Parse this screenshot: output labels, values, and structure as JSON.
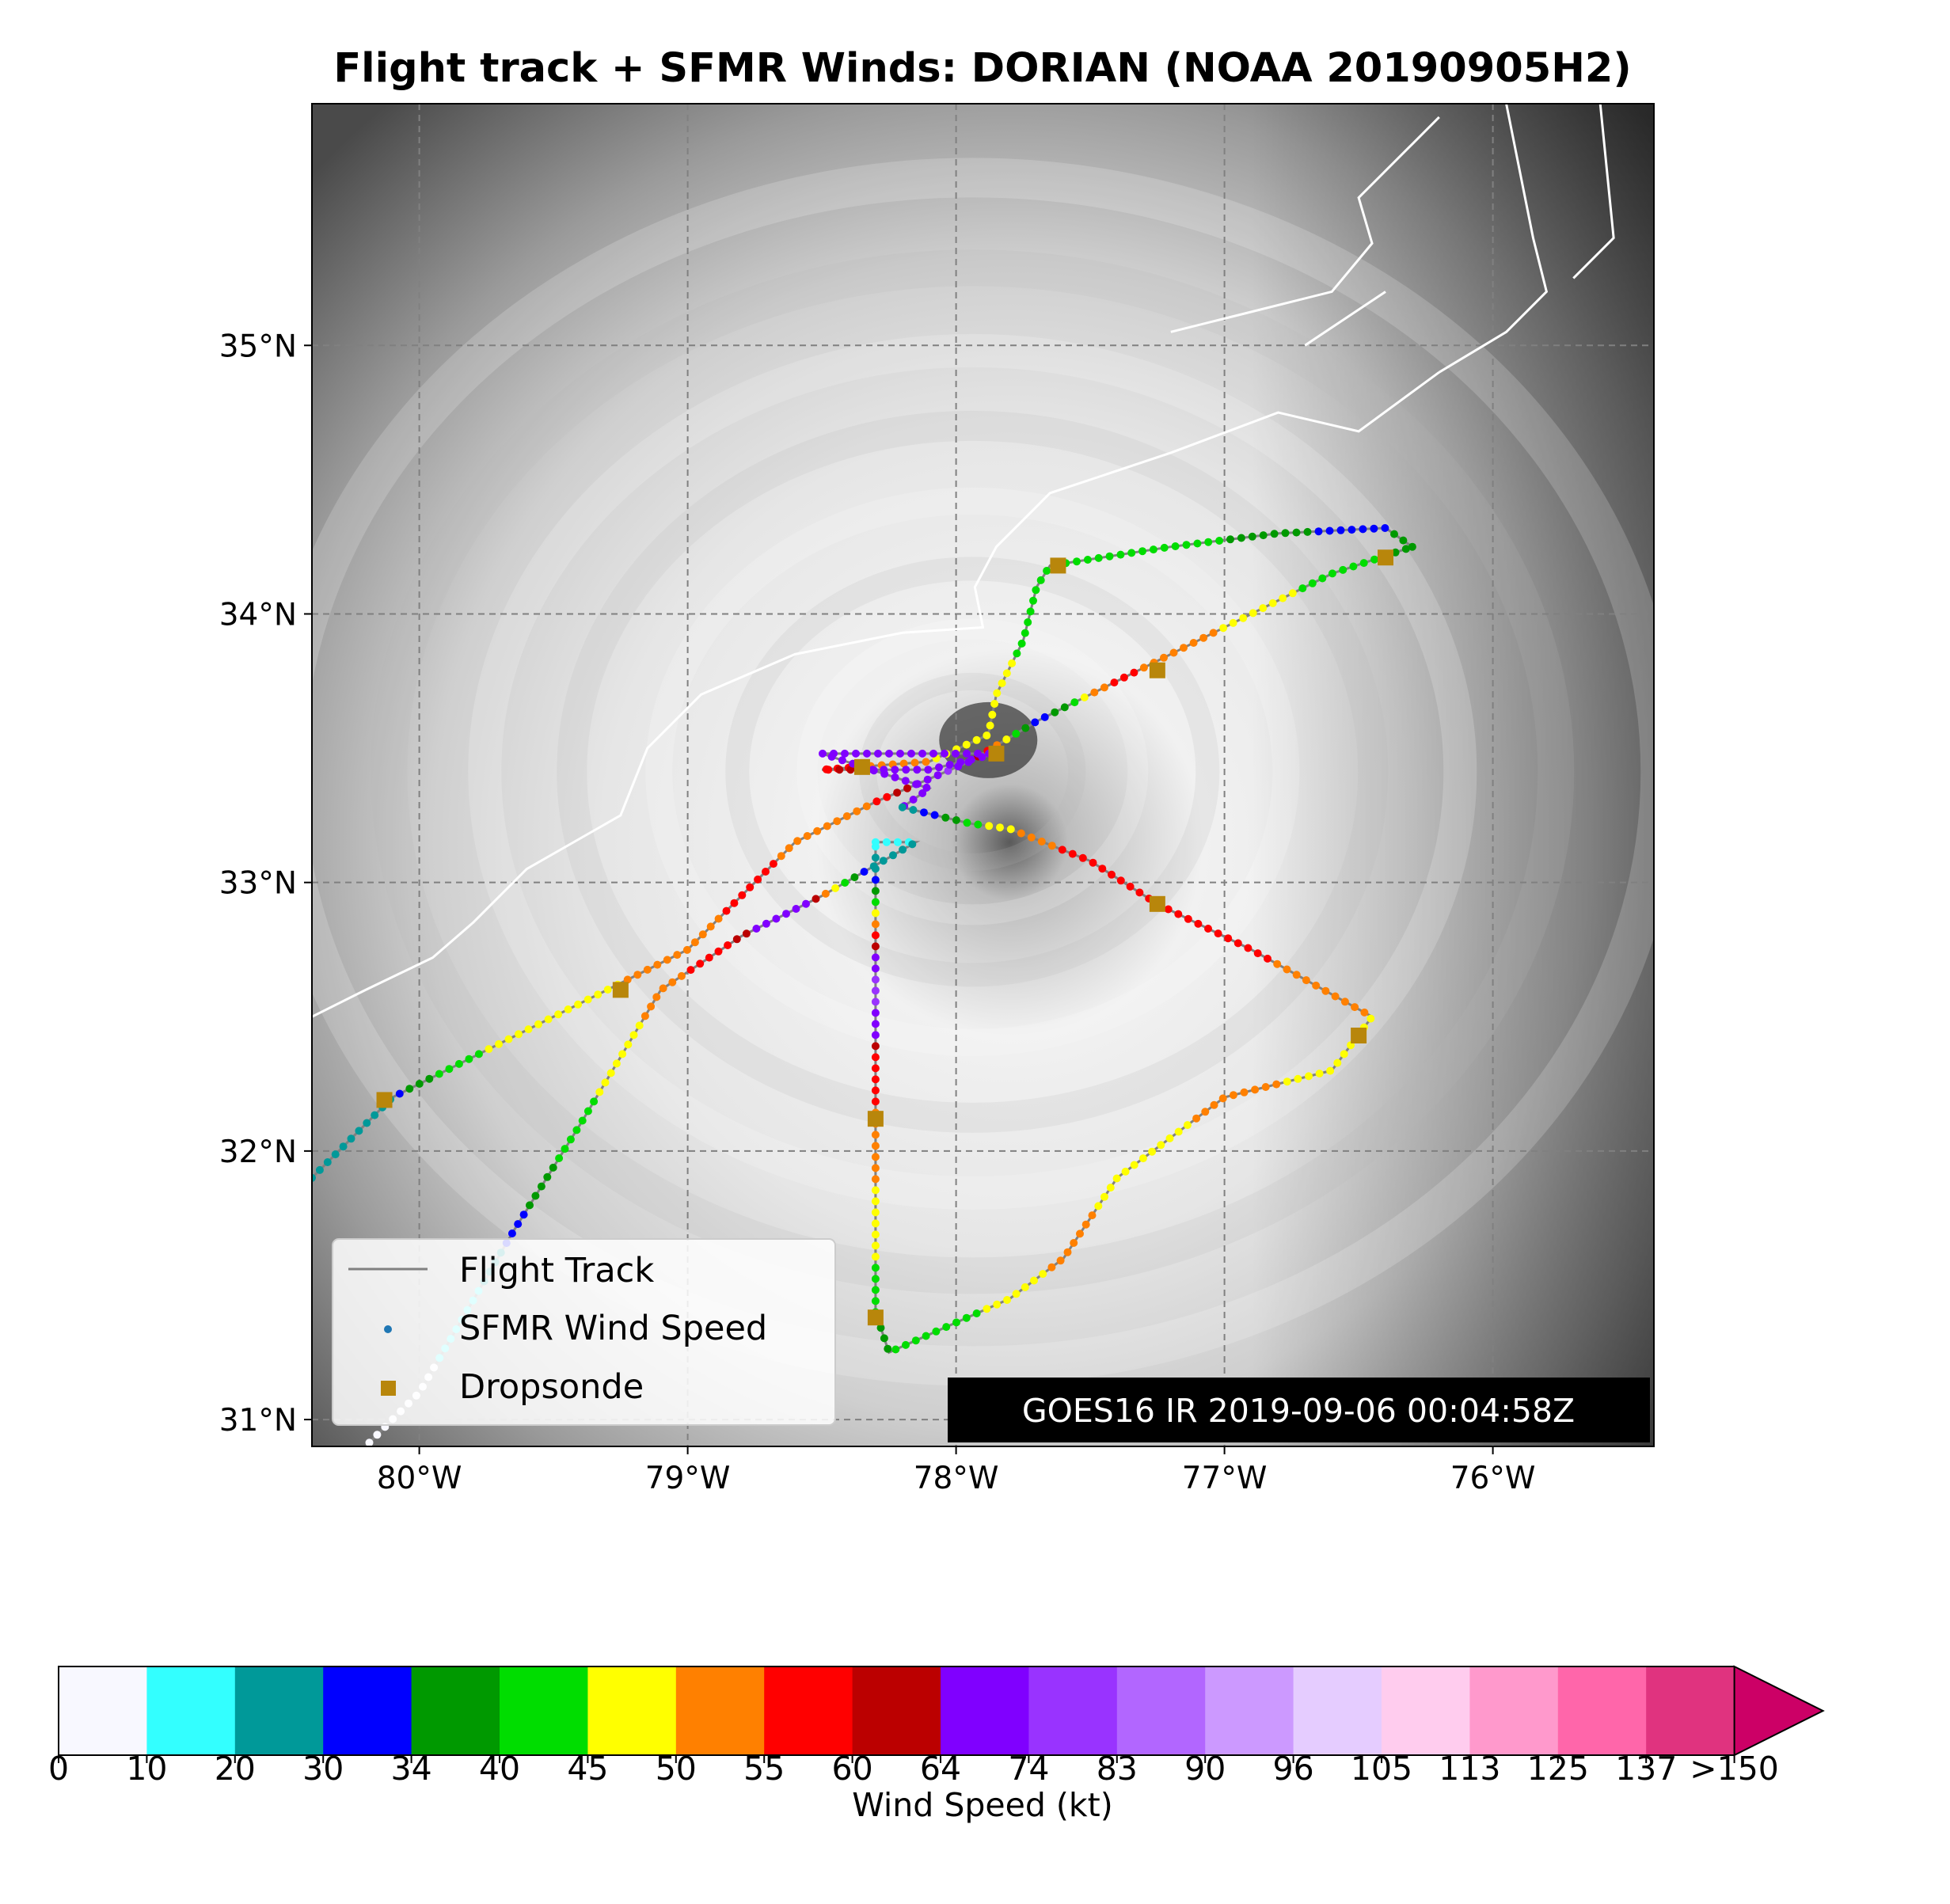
{
  "title": "Flight track + SFMR Winds: DORIAN (NOAA 20190905H2)",
  "goes_label": "GOES16 IR 2019-09-06 00:04:58Z",
  "legend": {
    "flight_track": "Flight Track",
    "sfmr": "SFMR Wind Speed",
    "dropsonde": "Dropsonde"
  },
  "colorbar": {
    "label": "Wind Speed (kt)",
    "ticks": [
      "0",
      "10",
      "20",
      "30",
      "34",
      "40",
      "45",
      "50",
      "55",
      "60",
      "64",
      "74",
      "83",
      "90",
      "96",
      "105",
      "113",
      "125",
      "137",
      ">150"
    ],
    "colors": [
      "#f8f8ff",
      "#33ffff",
      "#009999",
      "#0000ff",
      "#009900",
      "#00dd00",
      "#ffff00",
      "#ff8000",
      "#ff0000",
      "#bb0000",
      "#8000ff",
      "#9933ff",
      "#b266ff",
      "#cc99ff",
      "#e5ccff",
      "#ffccee",
      "#ff99cc",
      "#ff66aa",
      "#e0337f",
      "#cc0066"
    ]
  },
  "colors": {
    "track": "#808080",
    "dropsonde": "#b8860b",
    "coast": "#ffffff"
  },
  "chart_data": {
    "type": "scatter",
    "title": "Flight track + SFMR Winds: DORIAN (NOAA 20190905H2)",
    "xlim": [
      -80.4,
      -75.4
    ],
    "ylim": [
      30.9,
      35.9
    ],
    "xticks": [
      {
        "value": -80,
        "label": "80°W"
      },
      {
        "value": -79,
        "label": "79°W"
      },
      {
        "value": -78,
        "label": "78°W"
      },
      {
        "value": -77,
        "label": "77°W"
      },
      {
        "value": -76,
        "label": "76°W"
      }
    ],
    "yticks": [
      {
        "value": 31,
        "label": "31°N"
      },
      {
        "value": 32,
        "label": "32°N"
      },
      {
        "value": 33,
        "label": "33°N"
      },
      {
        "value": 34,
        "label": "34°N"
      },
      {
        "value": 35,
        "label": "35°N"
      }
    ],
    "grid": true,
    "legend_position": "lower-left",
    "storm_center": [
      -77.88,
      33.53
    ],
    "flight_legs": [
      {
        "pts": [
          [
            -80.4,
            31.9
          ],
          [
            -80.1,
            32.2
          ],
          [
            -79.7,
            32.4
          ],
          [
            -79.3,
            32.6
          ],
          [
            -79.0,
            32.75
          ],
          [
            -78.6,
            33.15
          ],
          [
            -78.3,
            33.3
          ],
          [
            -77.95,
            33.45
          ],
          [
            -77.7,
            33.6
          ],
          [
            -77.3,
            33.8
          ],
          [
            -76.9,
            34.0
          ],
          [
            -76.6,
            34.15
          ],
          [
            -76.3,
            34.25
          ]
        ],
        "w": [
          [
            0,
            22
          ],
          [
            0.08,
            28
          ],
          [
            0.14,
            44
          ],
          [
            0.25,
            48
          ],
          [
            0.33,
            52
          ],
          [
            0.42,
            57
          ],
          [
            0.52,
            50
          ],
          [
            0.6,
            75
          ],
          [
            0.68,
            30
          ],
          [
            0.74,
            57
          ],
          [
            0.8,
            52
          ],
          [
            0.88,
            47
          ],
          [
            0.95,
            42
          ],
          [
            1.0,
            37
          ]
        ]
      },
      {
        "pts": [
          [
            -76.3,
            34.25
          ],
          [
            -76.4,
            34.32
          ],
          [
            -76.8,
            34.3
          ],
          [
            -77.2,
            34.25
          ],
          [
            -77.65,
            34.18
          ],
          [
            -77.7,
            34.1
          ],
          [
            -77.75,
            33.9
          ],
          [
            -77.85,
            33.7
          ],
          [
            -77.88,
            33.55
          ],
          [
            -78.1,
            33.45
          ],
          [
            -78.5,
            33.42
          ],
          [
            -78.1,
            33.42
          ],
          [
            -77.85,
            33.48
          ],
          [
            -78.5,
            33.48
          ],
          [
            -78.1,
            33.35
          ],
          [
            -78.2,
            33.28
          ]
        ],
        "w": [
          [
            0,
            37
          ],
          [
            0.05,
            31
          ],
          [
            0.18,
            42
          ],
          [
            0.35,
            44
          ],
          [
            0.45,
            47
          ],
          [
            0.52,
            51
          ],
          [
            0.58,
            56
          ],
          [
            0.64,
            68
          ],
          [
            0.75,
            70
          ],
          [
            0.85,
            73
          ],
          [
            1.0,
            70
          ]
        ]
      },
      {
        "pts": [
          [
            -78.2,
            33.28
          ],
          [
            -77.95,
            33.22
          ],
          [
            -77.8,
            33.2
          ],
          [
            -77.5,
            33.08
          ],
          [
            -77.25,
            32.92
          ],
          [
            -76.9,
            32.75
          ],
          [
            -76.45,
            32.5
          ],
          [
            -76.6,
            32.3
          ],
          [
            -77.0,
            32.2
          ],
          [
            -77.4,
            31.9
          ],
          [
            -77.6,
            31.6
          ],
          [
            -77.8,
            31.45
          ],
          [
            -78.25,
            31.25
          ],
          [
            -78.3,
            31.4
          ]
        ],
        "w": [
          [
            0,
            25
          ],
          [
            0.08,
            48
          ],
          [
            0.18,
            60
          ],
          [
            0.3,
            58
          ],
          [
            0.38,
            53
          ],
          [
            0.5,
            47
          ],
          [
            0.58,
            52
          ],
          [
            0.7,
            47
          ],
          [
            0.78,
            52
          ],
          [
            0.86,
            46
          ],
          [
            0.94,
            42
          ],
          [
            1.0,
            36
          ]
        ]
      },
      {
        "pts": [
          [
            -78.3,
            31.4
          ],
          [
            -78.3,
            32.1
          ],
          [
            -78.3,
            32.5
          ],
          [
            -78.3,
            32.8
          ],
          [
            -78.3,
            33.0
          ],
          [
            -78.3,
            33.15
          ]
        ],
        "w": [
          [
            0,
            42
          ],
          [
            0.18,
            47
          ],
          [
            0.35,
            52
          ],
          [
            0.55,
            60
          ],
          [
            0.7,
            80
          ],
          [
            0.85,
            46
          ],
          [
            1.0,
            15
          ]
        ]
      },
      {
        "pts": [
          [
            -78.3,
            33.15
          ],
          [
            -78.15,
            33.15
          ],
          [
            -78.5,
            32.95
          ],
          [
            -78.8,
            32.8
          ],
          [
            -79.1,
            32.6
          ],
          [
            -79.4,
            32.1
          ],
          [
            -79.65,
            31.7
          ],
          [
            -80.0,
            31.1
          ],
          [
            -80.2,
            30.9
          ]
        ],
        "w": [
          [
            0,
            15
          ],
          [
            0.1,
            25
          ],
          [
            0.2,
            72
          ],
          [
            0.3,
            58
          ],
          [
            0.45,
            48
          ],
          [
            0.58,
            43
          ],
          [
            0.72,
            30
          ],
          [
            0.82,
            12
          ],
          [
            1.0,
            6
          ]
        ]
      }
    ],
    "dropsondes": [
      {
        "lon": -80.13,
        "lat": 32.19
      },
      {
        "lon": -79.25,
        "lat": 32.6
      },
      {
        "lon": -78.35,
        "lat": 33.43
      },
      {
        "lon": -77.85,
        "lat": 33.48
      },
      {
        "lon": -77.62,
        "lat": 34.18
      },
      {
        "lon": -77.25,
        "lat": 33.79
      },
      {
        "lon": -76.4,
        "lat": 34.21
      },
      {
        "lon": -77.25,
        "lat": 32.92
      },
      {
        "lon": -76.5,
        "lat": 32.43
      },
      {
        "lon": -78.3,
        "lat": 32.12
      },
      {
        "lon": -78.3,
        "lat": 31.38
      }
    ]
  }
}
